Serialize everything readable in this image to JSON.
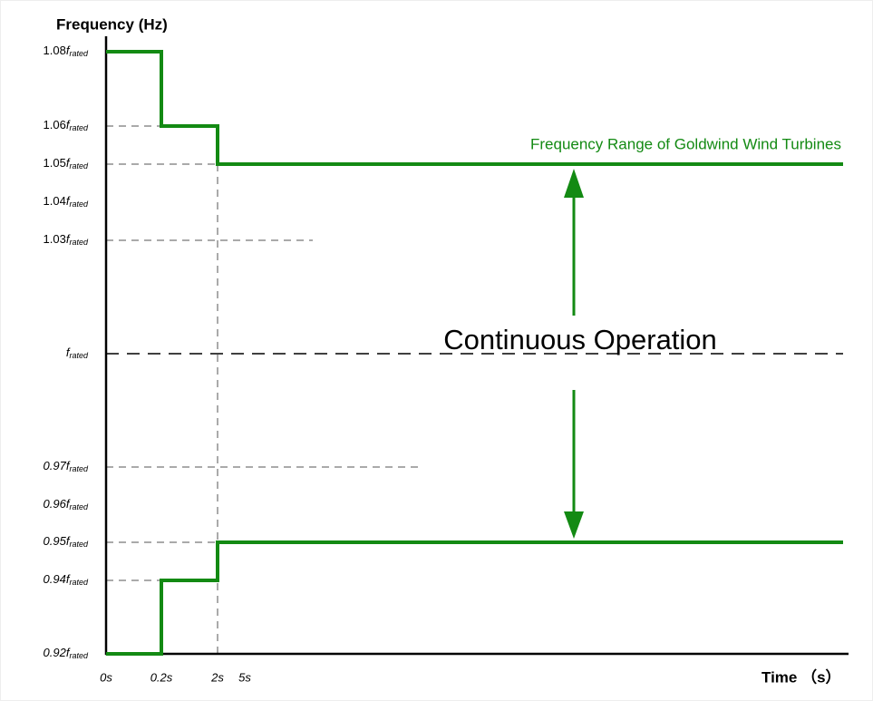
{
  "y_axis": {
    "title": "Frequency (Hz)",
    "labels": [
      {
        "coef": "1.08",
        "symbol": "f",
        "subscript": "rated"
      },
      {
        "coef": "1.06",
        "symbol": "f",
        "subscript": "rated"
      },
      {
        "coef": "1.05",
        "symbol": "f",
        "subscript": "rated"
      },
      {
        "coef": "1.04",
        "symbol": "f",
        "subscript": "rated"
      },
      {
        "coef": "1.03",
        "symbol": "f",
        "subscript": "rated"
      },
      {
        "coef": "",
        "symbol": "f",
        "subscript": "rated"
      },
      {
        "coef": "0.97",
        "symbol": "f",
        "subscript": "rated"
      },
      {
        "coef": "0.96",
        "symbol": "f",
        "subscript": "rated"
      },
      {
        "coef": "0.95",
        "symbol": "f",
        "subscript": "rated"
      },
      {
        "coef": "0.94",
        "symbol": "f",
        "subscript": "rated"
      },
      {
        "coef": "0.92",
        "symbol": "f",
        "subscript": "rated"
      }
    ]
  },
  "x_axis": {
    "title": "Time （s）",
    "labels": [
      "0s",
      "0.2s",
      "2s",
      "5s"
    ]
  },
  "annotations": {
    "center": "Continuous Operation",
    "range": "Frequency Range of Goldwind Wind Turbines"
  }
}
